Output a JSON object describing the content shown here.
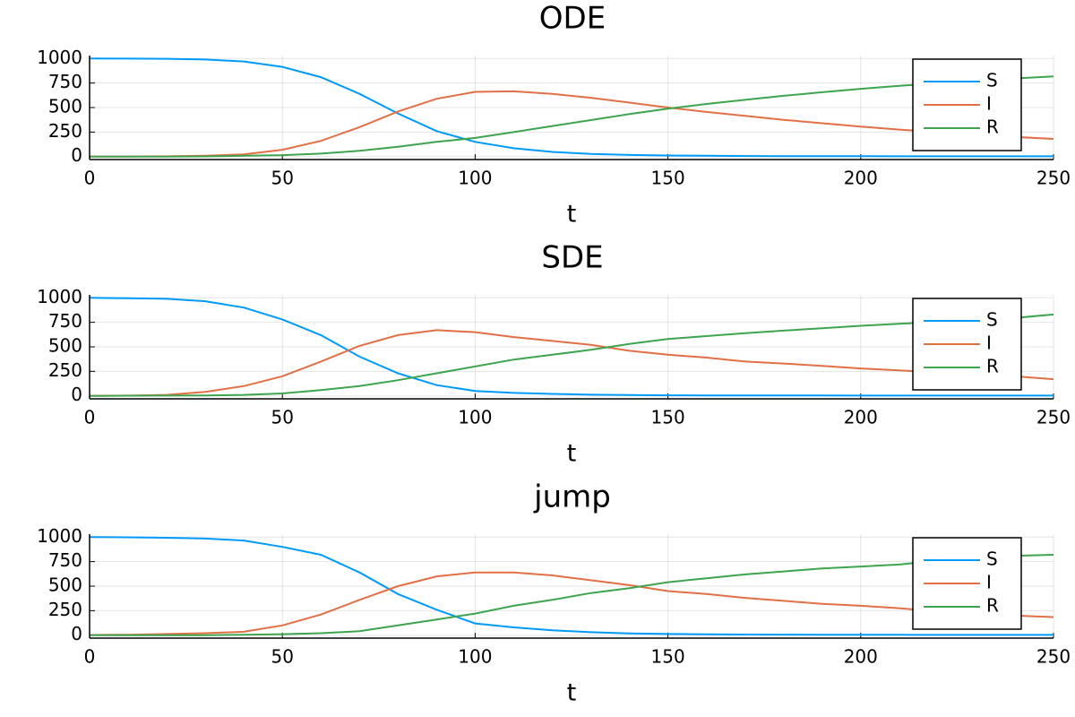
{
  "chart_data": [
    {
      "type": "line",
      "title": "ODE",
      "x_label": "t",
      "x": [
        0,
        10,
        20,
        30,
        40,
        50,
        60,
        70,
        80,
        90,
        100,
        110,
        120,
        130,
        140,
        150,
        160,
        170,
        180,
        190,
        200,
        210,
        220,
        230,
        240,
        250
      ],
      "series": [
        {
          "name": "S",
          "color": "#009af9",
          "values": [
            1000,
            999,
            997,
            990,
            970,
            915,
            810,
            640,
            440,
            260,
            150,
            85,
            48,
            28,
            17,
            11,
            8,
            6,
            5,
            4,
            4,
            3,
            3,
            3,
            3,
            3
          ]
        },
        {
          "name": "I",
          "color": "#e26f46",
          "values": [
            1,
            1.5,
            3,
            8,
            22,
            70,
            160,
            300,
            460,
            590,
            660,
            665,
            640,
            600,
            550,
            500,
            455,
            415,
            375,
            340,
            305,
            275,
            250,
            225,
            200,
            180
          ]
        },
        {
          "name": "R",
          "color": "#3ea44e",
          "values": [
            0,
            0,
            0,
            2,
            8,
            15,
            30,
            60,
            100,
            150,
            190,
            250,
            312,
            372,
            433,
            489,
            537,
            579,
            620,
            656,
            691,
            722,
            747,
            772,
            797,
            817
          ]
        }
      ],
      "xlim": [
        0,
        250
      ],
      "xticks": [
        0,
        50,
        100,
        150,
        200,
        250
      ],
      "ylim": [
        -30,
        1030
      ],
      "yticks": [
        0,
        250,
        500,
        750,
        1000
      ],
      "grid": true,
      "legend": "top-right"
    },
    {
      "type": "line",
      "title": "SDE",
      "x_label": "t",
      "x": [
        0,
        10,
        20,
        30,
        40,
        50,
        60,
        70,
        80,
        90,
        100,
        110,
        120,
        130,
        140,
        150,
        160,
        170,
        180,
        190,
        200,
        210,
        220,
        230,
        240,
        250
      ],
      "series": [
        {
          "name": "S",
          "color": "#009af9",
          "values": [
            1000,
            995,
            990,
            965,
            900,
            780,
            620,
            400,
            230,
            110,
            50,
            30,
            20,
            12,
            8,
            6,
            5,
            5,
            4,
            4,
            3,
            3,
            3,
            3,
            3,
            3
          ]
        },
        {
          "name": "I",
          "color": "#e26f46",
          "values": [
            1,
            3,
            10,
            40,
            100,
            200,
            350,
            510,
            620,
            670,
            650,
            600,
            560,
            520,
            460,
            420,
            390,
            350,
            330,
            305,
            280,
            260,
            240,
            220,
            200,
            170
          ]
        },
        {
          "name": "R",
          "color": "#3ea44e",
          "values": [
            0,
            2,
            3,
            5,
            10,
            25,
            60,
            100,
            160,
            230,
            300,
            370,
            420,
            470,
            530,
            580,
            610,
            640,
            665,
            690,
            715,
            735,
            755,
            775,
            795,
            830
          ]
        }
      ],
      "xlim": [
        0,
        250
      ],
      "xticks": [
        0,
        50,
        100,
        150,
        200,
        250
      ],
      "ylim": [
        -30,
        1030
      ],
      "yticks": [
        0,
        250,
        500,
        750,
        1000
      ],
      "grid": true,
      "legend": "top-right"
    },
    {
      "type": "line",
      "title": "jump",
      "x_label": "t",
      "x": [
        0,
        10,
        20,
        30,
        40,
        50,
        60,
        70,
        80,
        90,
        100,
        110,
        120,
        130,
        140,
        150,
        160,
        170,
        180,
        190,
        200,
        210,
        220,
        230,
        240,
        250
      ],
      "series": [
        {
          "name": "S",
          "color": "#009af9",
          "values": [
            1000,
            998,
            993,
            985,
            965,
            900,
            820,
            640,
            420,
            260,
            120,
            80,
            50,
            30,
            18,
            12,
            9,
            7,
            6,
            5,
            4,
            4,
            3,
            3,
            3,
            3
          ]
        },
        {
          "name": "I",
          "color": "#e26f46",
          "values": [
            2,
            5,
            12,
            20,
            35,
            100,
            210,
            360,
            500,
            600,
            640,
            640,
            610,
            560,
            510,
            450,
            420,
            380,
            350,
            320,
            300,
            275,
            240,
            215,
            200,
            185
          ]
        },
        {
          "name": "R",
          "color": "#3ea44e",
          "values": [
            0,
            0,
            0,
            0,
            5,
            10,
            20,
            40,
            100,
            160,
            220,
            300,
            360,
            430,
            480,
            540,
            580,
            620,
            650,
            680,
            700,
            720,
            760,
            790,
            810,
            820
          ]
        }
      ],
      "xlim": [
        0,
        250
      ],
      "xticks": [
        0,
        50,
        100,
        150,
        200,
        250
      ],
      "ylim": [
        -30,
        1030
      ],
      "yticks": [
        0,
        250,
        500,
        750,
        1000
      ],
      "grid": true,
      "legend": "top-right"
    }
  ]
}
